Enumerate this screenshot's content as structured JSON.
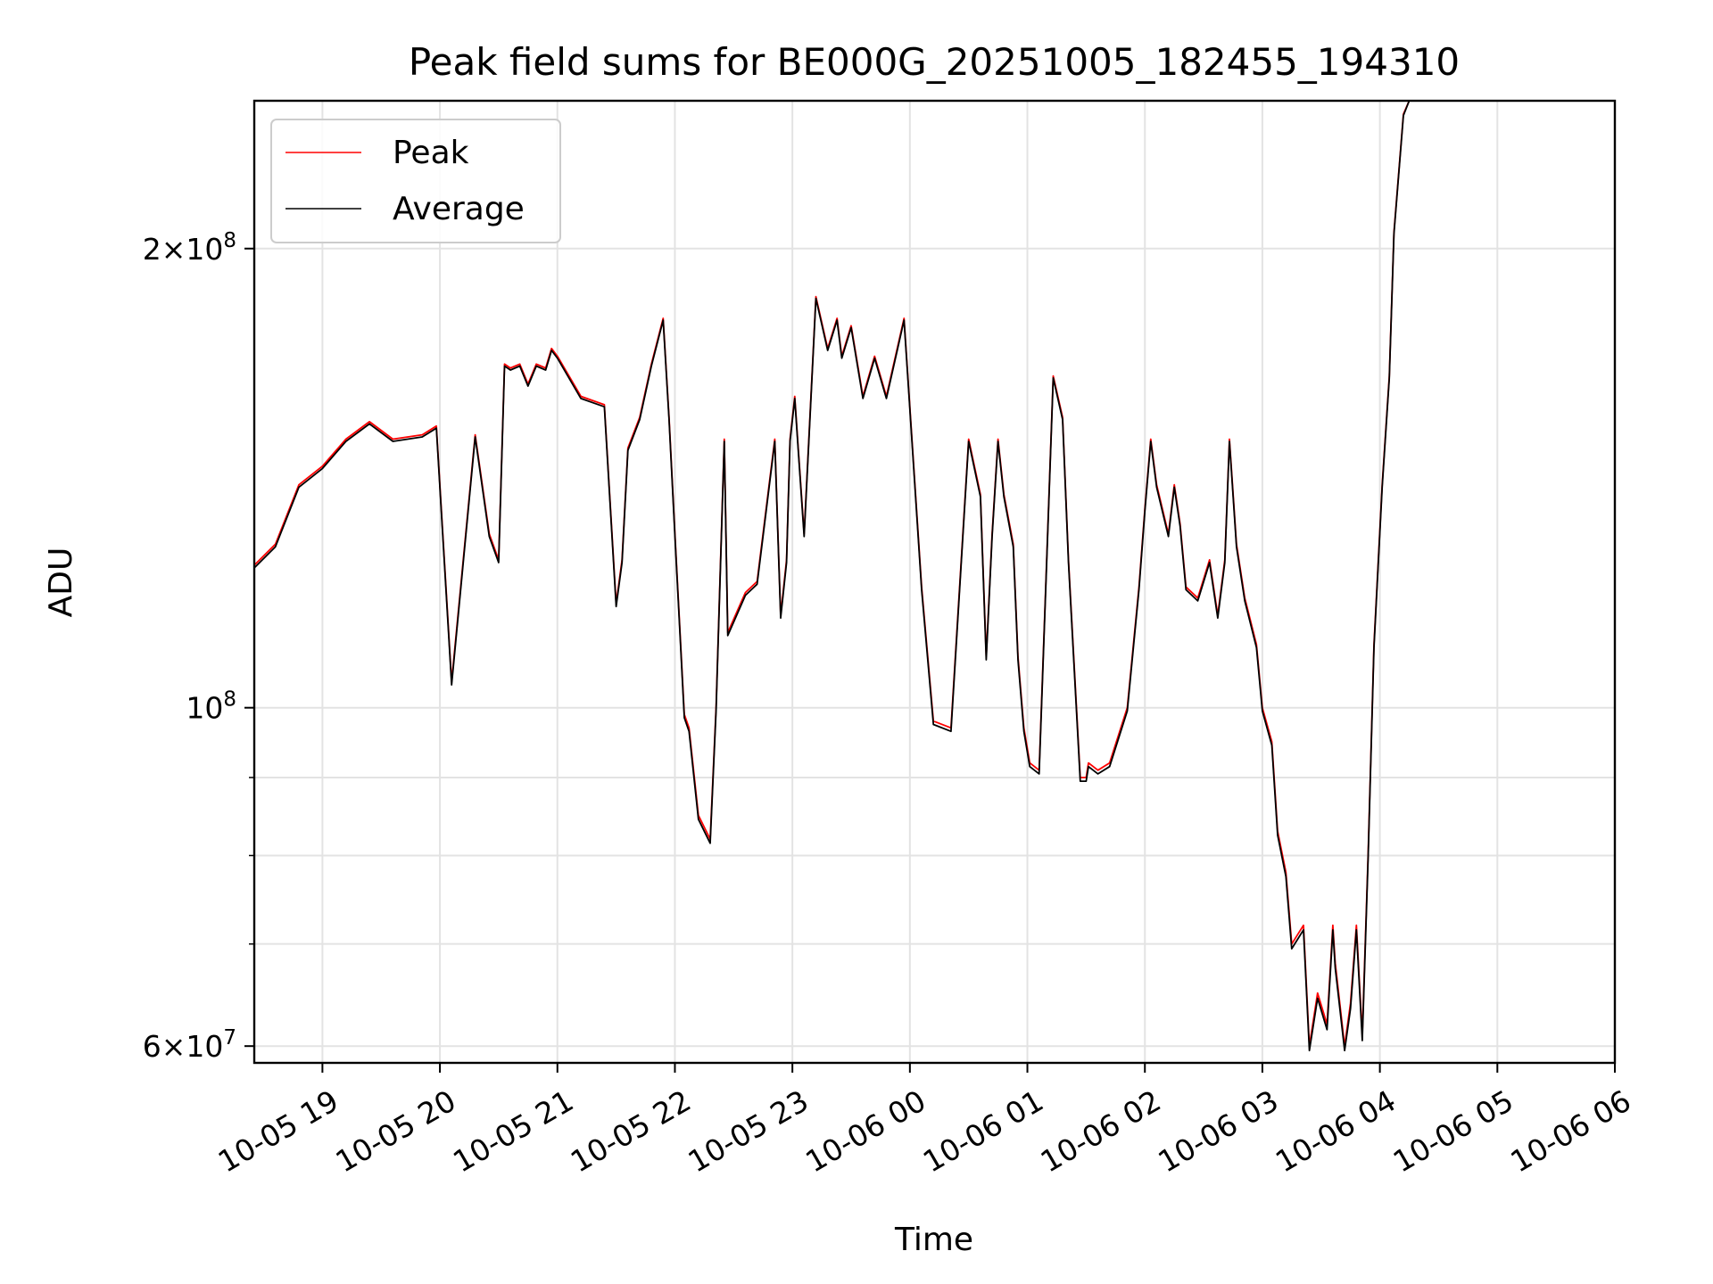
{
  "chart_data": {
    "type": "line",
    "title": "Peak field sums for BE000G_20251005_182455_194310",
    "xlabel": "Time",
    "ylabel": "ADU",
    "yscale": "log",
    "ylim": [
      58500000,
      250000000
    ],
    "xlim": [
      18.42,
      30.0
    ],
    "grid": true,
    "legend_position": "top-left",
    "x_ticks": [
      {
        "value": 19,
        "label": "10-05 19"
      },
      {
        "value": 20,
        "label": "10-05 20"
      },
      {
        "value": 21,
        "label": "10-05 21"
      },
      {
        "value": 22,
        "label": "10-05 22"
      },
      {
        "value": 23,
        "label": "10-05 23"
      },
      {
        "value": 24,
        "label": "10-06 00"
      },
      {
        "value": 25,
        "label": "10-06 01"
      },
      {
        "value": 26,
        "label": "10-06 02"
      },
      {
        "value": 27,
        "label": "10-06 03"
      },
      {
        "value": 28,
        "label": "10-06 04"
      },
      {
        "value": 29,
        "label": "10-06 05"
      },
      {
        "value": 30,
        "label": "10-06 06"
      }
    ],
    "y_ticks_major": [
      {
        "value": 200000000,
        "mantissa": "2",
        "exp": "8"
      },
      {
        "value": 100000000,
        "mantissa": "",
        "exp": "8"
      },
      {
        "value": 60000000,
        "mantissa": "6",
        "exp": "7"
      }
    ],
    "y_ticks_minor": [
      70000000,
      80000000,
      90000000
    ],
    "x_hours_note": "x values are hours since 2025-10-05 00:00",
    "series": [
      {
        "name": "Peak",
        "color": "#ff0000",
        "x": [
          18.42,
          18.6,
          18.8,
          19.0,
          19.2,
          19.4,
          19.6,
          19.85,
          19.97,
          20.1,
          20.3,
          20.42,
          20.5,
          20.55,
          20.6,
          20.68,
          20.75,
          20.82,
          20.9,
          20.95,
          21.0,
          21.2,
          21.4,
          21.5,
          21.55,
          21.6,
          21.7,
          21.8,
          21.9,
          21.95,
          22.0,
          22.08,
          22.12,
          22.2,
          22.3,
          22.35,
          22.42,
          22.45,
          22.6,
          22.7,
          22.85,
          22.9,
          22.95,
          22.98,
          23.02,
          23.05,
          23.1,
          23.2,
          23.3,
          23.38,
          23.42,
          23.5,
          23.6,
          23.7,
          23.8,
          23.95,
          24.1,
          24.2,
          24.35,
          24.5,
          24.6,
          24.65,
          24.7,
          24.75,
          24.8,
          24.88,
          24.92,
          24.97,
          25.02,
          25.1,
          25.18,
          25.22,
          25.3,
          25.35,
          25.45,
          25.5,
          25.52,
          25.6,
          25.7,
          25.85,
          25.95,
          26.0,
          26.05,
          26.1,
          26.2,
          26.25,
          26.3,
          26.35,
          26.45,
          26.55,
          26.62,
          26.68,
          26.72,
          26.78,
          26.85,
          26.95,
          27.0,
          27.08,
          27.13,
          27.2,
          27.25,
          27.35,
          27.4,
          27.47,
          27.55,
          27.6,
          27.62,
          27.7,
          27.75,
          27.8,
          27.85,
          27.9,
          27.95,
          28.02,
          28.08,
          28.12,
          28.2,
          28.25,
          28.32,
          28.38,
          28.42,
          28.48,
          28.55,
          28.6,
          28.65,
          28.7,
          28.8,
          28.9,
          29.0,
          29.05,
          29.1
        ],
        "values": [
          124000000,
          128000000,
          140000000,
          144000000,
          150000000,
          154000000,
          150000000,
          151000000,
          153000000,
          104000000,
          151000000,
          130000000,
          125000000,
          168000000,
          167000000,
          168000000,
          163000000,
          168000000,
          167000000,
          172000000,
          170000000,
          160000000,
          158000000,
          117000000,
          125000000,
          148000000,
          155000000,
          168000000,
          180000000,
          155000000,
          130000000,
          99000000,
          97000000,
          85000000,
          82000000,
          100000000,
          150000000,
          112000000,
          119000000,
          121000000,
          150000000,
          115000000,
          125000000,
          150000000,
          160000000,
          148000000,
          130000000,
          186000000,
          172000000,
          180000000,
          170000000,
          178000000,
          160000000,
          170000000,
          160000000,
          180000000,
          120000000,
          98000000,
          97000000,
          150000000,
          138000000,
          108000000,
          130000000,
          150000000,
          138000000,
          128000000,
          108000000,
          97000000,
          92000000,
          91000000,
          135000000,
          165000000,
          155000000,
          125000000,
          90000000,
          90000000,
          92000000,
          91000000,
          92000000,
          100000000,
          120000000,
          135000000,
          150000000,
          140000000,
          130000000,
          140000000,
          132000000,
          120000000,
          118000000,
          125000000,
          115000000,
          125000000,
          150000000,
          128000000,
          118000000,
          110000000,
          100000000,
          95000000,
          83000000,
          78000000,
          70000000,
          72000000,
          60000000,
          65000000,
          62000000,
          72000000,
          68000000,
          60000000,
          64000000,
          72000000,
          61000000,
          80000000,
          110000000,
          140000000,
          165000000,
          205000000,
          245000000,
          250000000,
          250000000,
          250000000,
          250000000,
          250000000,
          250000000,
          250000000,
          250000000,
          250000000,
          250000000,
          250000000,
          250000000,
          250000000,
          250000000
        ]
      },
      {
        "name": "Average",
        "color": "#000000",
        "x": [
          18.42,
          18.6,
          18.8,
          19.0,
          19.2,
          19.4,
          19.6,
          19.85,
          19.97,
          20.1,
          20.3,
          20.42,
          20.5,
          20.55,
          20.6,
          20.68,
          20.75,
          20.82,
          20.9,
          20.95,
          21.0,
          21.2,
          21.4,
          21.5,
          21.55,
          21.6,
          21.7,
          21.8,
          21.9,
          21.95,
          22.0,
          22.08,
          22.12,
          22.2,
          22.3,
          22.35,
          22.42,
          22.45,
          22.6,
          22.7,
          22.85,
          22.9,
          22.95,
          22.98,
          23.02,
          23.05,
          23.1,
          23.2,
          23.3,
          23.38,
          23.42,
          23.5,
          23.6,
          23.7,
          23.8,
          23.95,
          24.1,
          24.2,
          24.35,
          24.5,
          24.6,
          24.65,
          24.7,
          24.75,
          24.8,
          24.88,
          24.92,
          24.97,
          25.02,
          25.1,
          25.18,
          25.22,
          25.3,
          25.35,
          25.45,
          25.5,
          25.52,
          25.6,
          25.7,
          25.85,
          25.95,
          26.0,
          26.05,
          26.1,
          26.2,
          26.25,
          26.3,
          26.35,
          26.45,
          26.55,
          26.62,
          26.68,
          26.72,
          26.78,
          26.85,
          26.95,
          27.0,
          27.08,
          27.13,
          27.2,
          27.25,
          27.35,
          27.4,
          27.47,
          27.55,
          27.6,
          27.62,
          27.7,
          27.75,
          27.8,
          27.85,
          27.9,
          27.95,
          28.02,
          28.08,
          28.12,
          28.2,
          28.25,
          28.32,
          28.38,
          28.42,
          28.48,
          28.55,
          28.6,
          28.65,
          28.7,
          28.8,
          28.9,
          29.0,
          29.05,
          29.1
        ],
        "values": [
          123500000,
          127500000,
          139500000,
          143500000,
          149500000,
          153500000,
          149500000,
          150500000,
          152500000,
          103500000,
          150500000,
          129500000,
          124500000,
          167500000,
          166500000,
          167500000,
          162500000,
          167500000,
          166500000,
          171500000,
          169500000,
          159500000,
          157500000,
          116500000,
          124500000,
          147500000,
          154500000,
          167500000,
          179500000,
          154500000,
          129500000,
          98500000,
          96500000,
          84500000,
          81500000,
          99500000,
          149500000,
          111500000,
          118500000,
          120500000,
          149500000,
          114500000,
          124500000,
          149500000,
          159500000,
          147500000,
          129500000,
          185500000,
          171500000,
          179500000,
          169500000,
          177500000,
          159500000,
          169500000,
          159500000,
          179500000,
          119500000,
          97500000,
          96500000,
          149500000,
          137500000,
          107500000,
          129500000,
          149500000,
          137500000,
          127500000,
          107500000,
          96500000,
          91500000,
          90500000,
          134500000,
          164500000,
          154500000,
          124500000,
          89500000,
          89500000,
          91500000,
          90500000,
          91500000,
          99500000,
          119500000,
          134500000,
          149500000,
          139500000,
          129500000,
          139500000,
          131500000,
          119500000,
          117500000,
          124500000,
          114500000,
          124500000,
          149500000,
          127500000,
          117500000,
          109500000,
          99500000,
          94500000,
          82500000,
          77500000,
          69500000,
          71500000,
          59600000,
          64500000,
          61500000,
          71500000,
          67500000,
          59600000,
          63500000,
          71500000,
          60500000,
          79500000,
          109500000,
          139500000,
          164500000,
          204500000,
          244500000,
          250000000,
          250000000,
          250000000,
          250000000,
          250000000,
          250000000,
          250000000,
          250000000,
          250000000,
          250000000,
          250000000,
          250000000,
          250000000,
          250000000
        ]
      }
    ]
  }
}
